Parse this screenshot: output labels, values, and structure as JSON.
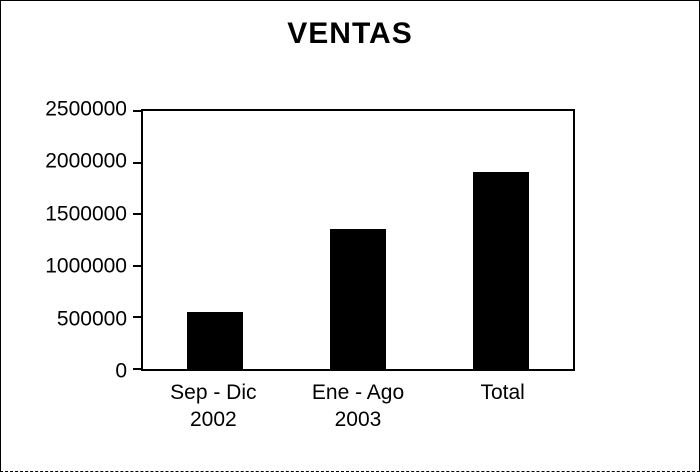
{
  "chart_data": {
    "type": "bar",
    "title": "VENTAS",
    "categories": [
      "Sep - Dic\n2002",
      "Ene - Ago\n2003",
      "Total"
    ],
    "values": [
      550000,
      1360000,
      1910000
    ],
    "xlabel": "",
    "ylabel": "",
    "ylim": [
      0,
      2500000
    ],
    "yticks": [
      0,
      500000,
      1000000,
      1500000,
      2000000,
      2500000
    ],
    "bar_color": "#000000",
    "background_color": "#ffffff",
    "grid": false,
    "legend": false
  }
}
